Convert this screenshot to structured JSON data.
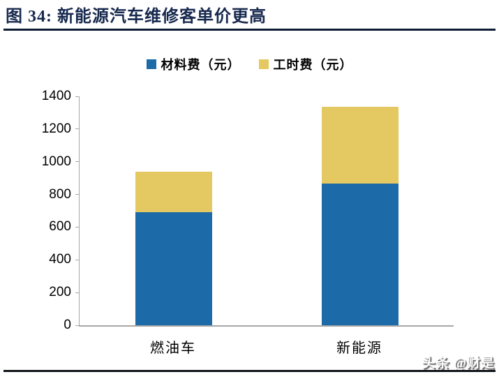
{
  "title": {
    "text": "图 34:  新能源汽车维修客单价更高"
  },
  "legend": [
    {
      "label": "材料费（元）",
      "color": "#1C6BA8"
    },
    {
      "label": "工时费（元）",
      "color": "#E4C862"
    }
  ],
  "chart_data": {
    "type": "bar",
    "stacked": true,
    "title": "新能源汽车维修客单价更高",
    "categories": [
      "燃油车",
      "新能源"
    ],
    "series": [
      {
        "name": "材料费（元）",
        "color": "#1C6BA8",
        "values": [
          690,
          865
        ]
      },
      {
        "name": "工时费（元）",
        "color": "#E4C862",
        "values": [
          250,
          470
        ]
      }
    ],
    "totals": [
      940,
      1335
    ],
    "xlabel": "",
    "ylabel": "",
    "ylim": [
      0,
      1400
    ],
    "yticks": [
      0,
      200,
      400,
      600,
      800,
      1000,
      1200,
      1400
    ],
    "grid": false,
    "legend_position": "top"
  },
  "watermark": {
    "text": "头条 @财是"
  }
}
